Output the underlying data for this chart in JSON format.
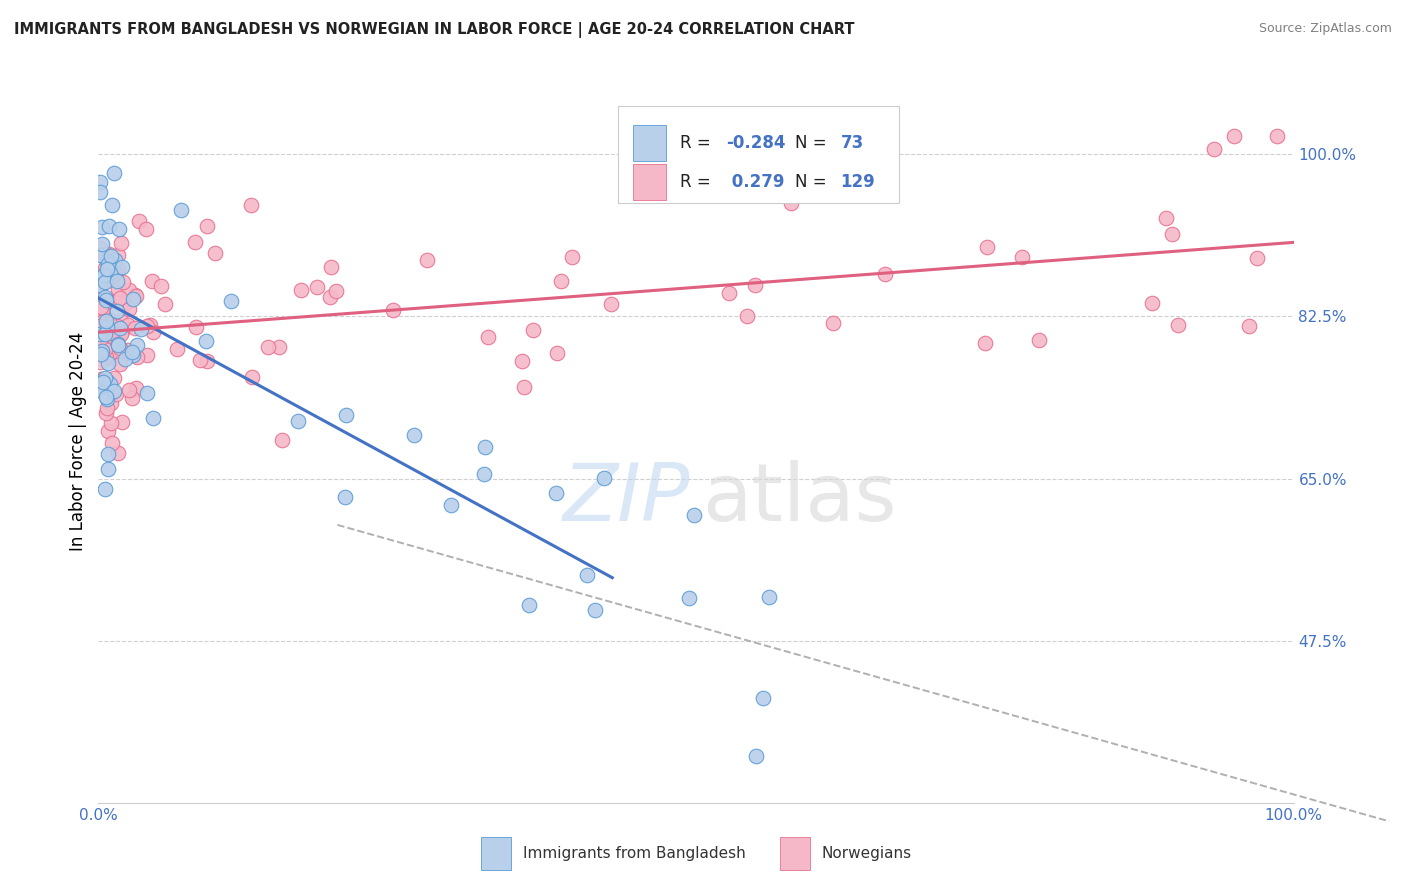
{
  "title": "IMMIGRANTS FROM BANGLADESH VS NORWEGIAN IN LABOR FORCE | AGE 20-24 CORRELATION CHART",
  "source": "Source: ZipAtlas.com",
  "ylabel": "In Labor Force | Age 20-24",
  "yticks": [
    0.475,
    0.65,
    0.825,
    1.0
  ],
  "ytick_labels": [
    "47.5%",
    "65.0%",
    "82.5%",
    "100.0%"
  ],
  "xlim": [
    0.0,
    1.0
  ],
  "ylim": [
    0.3,
    1.08
  ],
  "legend_R_blue": "-0.284",
  "legend_N_blue": "73",
  "legend_R_pink": "0.279",
  "legend_N_pink": "129",
  "blue_fill": "#b8d0ea",
  "pink_fill": "#f5b8c8",
  "blue_edge": "#5b9bd5",
  "pink_edge": "#e87090",
  "blue_line_color": "#4472c4",
  "pink_line_color": "#e06080",
  "dash_color": "#b0b0b0",
  "text_color": "#4472c4",
  "background_color": "#ffffff",
  "grid_color": "#d0d0d0",
  "watermark_zip_color": "#c0d8f0",
  "watermark_atlas_color": "#d8d8d8"
}
